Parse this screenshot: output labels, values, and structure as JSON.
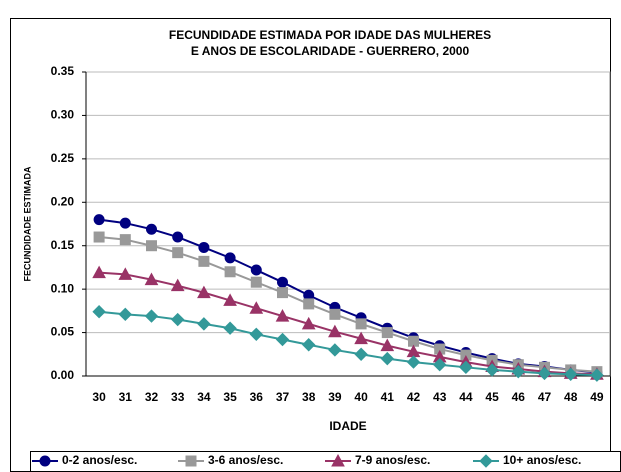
{
  "chart_data": {
    "type": "line",
    "title": [
      "FECUNDIDADE ESTIMADA POR IDADE DAS MULHERES",
      "E ANOS DE ESCOLARIDADE - GUERRERO, 2000"
    ],
    "xlabel": "IDADE",
    "ylabel": "FECUNDIDADE ESTIMADA",
    "categories": [
      30,
      31,
      32,
      33,
      34,
      35,
      36,
      37,
      38,
      39,
      40,
      41,
      42,
      43,
      44,
      45,
      46,
      47,
      48,
      49
    ],
    "ylim": [
      0,
      0.35
    ],
    "yticks": [
      {
        "value": 0,
        "label": "0.00"
      },
      {
        "value": 0.05,
        "label": "0.05"
      },
      {
        "value": 0.1,
        "label": "0.10"
      },
      {
        "value": 0.15,
        "label": "0.15"
      },
      {
        "value": 0.2,
        "label": "0.20"
      },
      {
        "value": 0.25,
        "label": "0.25"
      },
      {
        "value": 0.3,
        "label": "0.30"
      },
      {
        "value": 0.35,
        "label": "0.35"
      }
    ],
    "grid": true,
    "legend": "bottom",
    "series": [
      {
        "name": "0-2 anos/esc.",
        "color": "#000080",
        "marker": "circle",
        "values": [
          0.18,
          0.176,
          0.169,
          0.16,
          0.148,
          0.136,
          0.122,
          0.108,
          0.093,
          0.079,
          0.067,
          0.055,
          0.044,
          0.035,
          0.027,
          0.02,
          0.014,
          0.011,
          0.007,
          0.004
        ]
      },
      {
        "name": "3-6 anos/esc.",
        "color": "#999999",
        "marker": "square",
        "values": [
          0.16,
          0.157,
          0.15,
          0.142,
          0.132,
          0.12,
          0.108,
          0.096,
          0.083,
          0.071,
          0.06,
          0.05,
          0.04,
          0.031,
          0.024,
          0.018,
          0.013,
          0.01,
          0.007,
          0.005
        ]
      },
      {
        "name": "7-9 anos/esc.",
        "color": "#993366",
        "marker": "triangle",
        "values": [
          0.119,
          0.117,
          0.111,
          0.104,
          0.096,
          0.087,
          0.078,
          0.069,
          0.06,
          0.051,
          0.043,
          0.035,
          0.028,
          0.022,
          0.016,
          0.011,
          0.008,
          0.005,
          0.003,
          0.002
        ]
      },
      {
        "name": "10+ anos/esc.",
        "color": "#339999",
        "marker": "diamond",
        "values": [
          0.074,
          0.071,
          0.069,
          0.065,
          0.06,
          0.055,
          0.048,
          0.042,
          0.036,
          0.03,
          0.025,
          0.02,
          0.016,
          0.013,
          0.01,
          0.007,
          0.005,
          0.003,
          0.002,
          0.001
        ]
      }
    ]
  }
}
